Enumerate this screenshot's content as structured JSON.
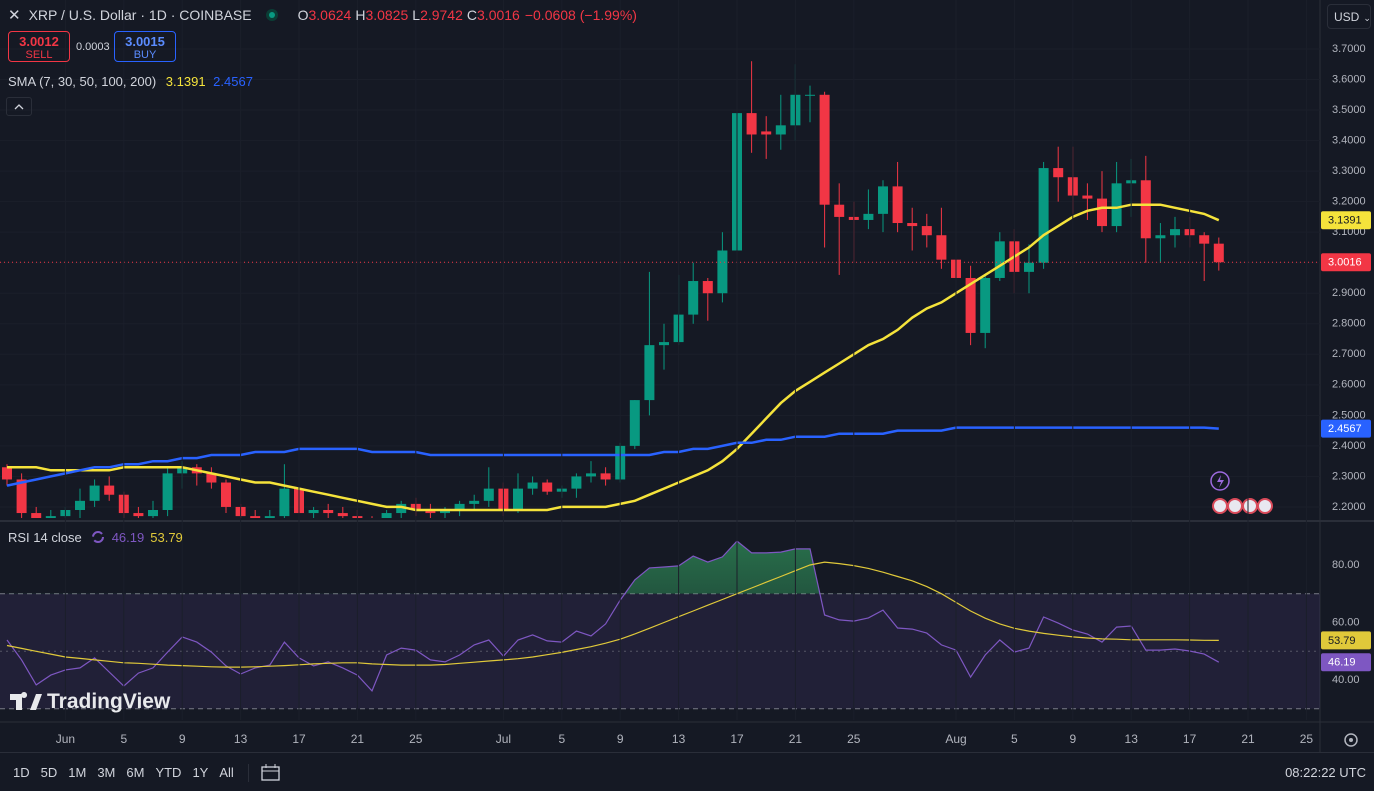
{
  "header": {
    "ohlc_labels": [
      "O",
      "H",
      "L",
      "C"
    ],
    "change": "−0.0608 (−1.99%)",
    "currency": "USD",
    "logo": "TradingView"
  },
  "trade": {
    "sell_price": 3.0012,
    "sell_label": "SELL",
    "spread": 0.0003,
    "buy_price": 3.0015,
    "buy_label": "BUY"
  },
  "toolbar": {
    "ranges": [
      "1D",
      "5D",
      "1M",
      "3M",
      "6M",
      "YTD",
      "1Y",
      "All"
    ],
    "time": "08:22:22 UTC"
  },
  "chart_data": [
    {
      "type": "candlestick",
      "title": "XRP / U.S. Dollar · 1D · COINBASE",
      "legend_title": "SMA (7, 30, 50, 100, 200)",
      "up_color": "#089981",
      "down_color": "#f23645",
      "grid": true,
      "x": [
        "05-28",
        "05-29",
        "05-30",
        "05-31",
        "06-01",
        "06-02",
        "06-03",
        "06-04",
        "06-05",
        "06-06",
        "06-07",
        "06-08",
        "06-09",
        "06-10",
        "06-11",
        "06-12",
        "06-13",
        "06-14",
        "06-15",
        "06-16",
        "06-17",
        "06-18",
        "06-19",
        "06-20",
        "06-21",
        "06-22",
        "06-23",
        "06-24",
        "06-25",
        "06-26",
        "06-27",
        "06-28",
        "06-29",
        "06-30",
        "07-01",
        "07-02",
        "07-03",
        "07-04",
        "07-05",
        "07-06",
        "07-07",
        "07-08",
        "07-09",
        "07-10",
        "07-11",
        "07-12",
        "07-13",
        "07-14",
        "07-15",
        "07-16",
        "07-17",
        "07-18",
        "07-19",
        "07-20",
        "07-21",
        "07-22",
        "07-23",
        "07-24",
        "07-25",
        "07-26",
        "07-27",
        "07-28",
        "07-29",
        "07-30",
        "07-31",
        "08-01",
        "08-02",
        "08-03",
        "08-04",
        "08-05",
        "08-06",
        "08-07",
        "08-08",
        "08-09",
        "08-10",
        "08-11",
        "08-12",
        "08-13",
        "08-14",
        "08-15",
        "08-16",
        "08-17",
        "08-18",
        "08-19"
      ],
      "open": [
        2.33,
        2.29,
        2.18,
        2.16,
        2.17,
        2.19,
        2.22,
        2.27,
        2.24,
        2.18,
        2.17,
        2.19,
        2.31,
        2.33,
        2.31,
        2.28,
        2.2,
        2.17,
        2.16,
        2.17,
        2.26,
        2.18,
        2.19,
        2.18,
        2.17,
        2.16,
        2.14,
        2.18,
        2.21,
        2.19,
        2.18,
        2.19,
        2.21,
        2.22,
        2.26,
        2.19,
        2.26,
        2.28,
        2.25,
        2.26,
        2.3,
        2.31,
        2.29,
        2.4,
        2.55,
        2.73,
        2.74,
        2.83,
        2.94,
        2.9,
        3.04,
        3.49,
        3.43,
        3.42,
        3.45,
        3.55,
        3.55,
        3.19,
        3.15,
        3.14,
        3.16,
        3.25,
        3.13,
        3.12,
        3.09,
        3.01,
        2.95,
        2.77,
        2.95,
        3.07,
        2.97,
        3.0,
        3.31,
        3.28,
        3.22,
        3.21,
        3.12,
        3.26,
        3.27,
        3.08,
        3.09,
        3.11,
        3.09,
        3.0624
      ],
      "high": [
        2.34,
        2.31,
        2.2,
        2.19,
        2.2,
        2.26,
        2.29,
        2.3,
        2.25,
        2.2,
        2.22,
        2.33,
        2.35,
        2.34,
        2.33,
        2.29,
        2.21,
        2.19,
        2.19,
        2.34,
        2.27,
        2.2,
        2.21,
        2.2,
        2.19,
        2.17,
        2.19,
        2.22,
        2.23,
        2.21,
        2.2,
        2.22,
        2.24,
        2.33,
        2.28,
        2.31,
        2.3,
        2.29,
        2.27,
        2.31,
        2.35,
        2.33,
        2.41,
        2.55,
        2.97,
        2.8,
        2.96,
        3.0,
        2.95,
        3.1,
        3.5,
        3.66,
        3.48,
        3.55,
        3.65,
        3.58,
        3.56,
        3.26,
        3.2,
        3.24,
        3.27,
        3.33,
        3.18,
        3.16,
        3.18,
        3.03,
        2.99,
        2.96,
        3.1,
        3.11,
        3.06,
        3.33,
        3.38,
        3.38,
        3.26,
        3.3,
        3.33,
        3.34,
        3.35,
        3.13,
        3.15,
        3.15,
        3.1,
        3.0825
      ],
      "low": [
        2.27,
        2.15,
        2.12,
        2.14,
        2.14,
        2.16,
        2.2,
        2.22,
        2.14,
        2.15,
        2.13,
        2.17,
        2.26,
        2.27,
        2.26,
        2.18,
        2.1,
        2.08,
        2.12,
        2.15,
        2.15,
        2.15,
        2.16,
        2.16,
        2.13,
        2.08,
        2.12,
        2.16,
        2.17,
        2.16,
        2.16,
        2.17,
        2.19,
        2.2,
        2.17,
        2.18,
        2.24,
        2.24,
        2.23,
        2.23,
        2.28,
        2.27,
        2.28,
        2.39,
        2.5,
        2.65,
        2.73,
        2.8,
        2.81,
        2.87,
        3.03,
        3.36,
        3.34,
        3.37,
        3.4,
        3.46,
        3.05,
        2.96,
        3.0,
        3.11,
        3.1,
        3.1,
        3.04,
        3.05,
        2.98,
        2.93,
        2.73,
        2.72,
        2.94,
        2.9,
        2.9,
        2.98,
        3.2,
        3.16,
        3.14,
        3.1,
        3.1,
        3.15,
        3.0,
        3.0,
        3.05,
        3.05,
        2.94,
        2.9742
      ],
      "close": [
        2.29,
        2.18,
        2.16,
        2.17,
        2.19,
        2.22,
        2.27,
        2.24,
        2.18,
        2.17,
        2.19,
        2.31,
        2.33,
        2.31,
        2.28,
        2.2,
        2.17,
        2.16,
        2.17,
        2.26,
        2.18,
        2.19,
        2.18,
        2.17,
        2.16,
        2.14,
        2.18,
        2.21,
        2.19,
        2.18,
        2.19,
        2.21,
        2.22,
        2.26,
        2.19,
        2.26,
        2.28,
        2.25,
        2.26,
        2.3,
        2.31,
        2.29,
        2.4,
        2.55,
        2.73,
        2.74,
        2.83,
        2.94,
        2.9,
        3.04,
        3.49,
        3.42,
        3.42,
        3.45,
        3.55,
        3.55,
        3.19,
        3.15,
        3.14,
        3.16,
        3.25,
        3.13,
        3.12,
        3.09,
        3.01,
        2.95,
        2.77,
        2.95,
        3.07,
        2.97,
        3.0,
        3.31,
        3.28,
        3.22,
        3.21,
        3.12,
        3.26,
        3.27,
        3.08,
        3.09,
        3.11,
        3.09,
        3.0624,
        3.0016
      ],
      "series": [
        {
          "color": "#f5e33b",
          "values": [
            2.33,
            2.33,
            2.33,
            2.32,
            2.32,
            2.32,
            2.32,
            2.32,
            2.33,
            2.33,
            2.33,
            2.33,
            2.33,
            2.32,
            2.31,
            2.3,
            2.29,
            2.28,
            2.28,
            2.27,
            2.26,
            2.25,
            2.24,
            2.23,
            2.22,
            2.21,
            2.2,
            2.2,
            2.19,
            2.19,
            2.19,
            2.19,
            2.19,
            2.19,
            2.19,
            2.19,
            2.19,
            2.19,
            2.2,
            2.2,
            2.2,
            2.2,
            2.21,
            2.22,
            2.24,
            2.26,
            2.28,
            2.3,
            2.32,
            2.35,
            2.39,
            2.44,
            2.49,
            2.54,
            2.58,
            2.61,
            2.64,
            2.67,
            2.7,
            2.73,
            2.75,
            2.78,
            2.82,
            2.85,
            2.87,
            2.9,
            2.93,
            2.96,
            2.99,
            3.02,
            3.05,
            3.09,
            3.12,
            3.15,
            3.17,
            3.18,
            3.18,
            3.19,
            3.19,
            3.19,
            3.18,
            3.17,
            3.16,
            3.1391
          ]
        },
        {
          "color": "#2962ff",
          "values": [
            2.27,
            2.28,
            2.29,
            2.3,
            2.31,
            2.32,
            2.33,
            2.33,
            2.34,
            2.34,
            2.35,
            2.35,
            2.36,
            2.36,
            2.37,
            2.37,
            2.37,
            2.38,
            2.38,
            2.38,
            2.39,
            2.39,
            2.39,
            2.39,
            2.39,
            2.38,
            2.38,
            2.38,
            2.38,
            2.37,
            2.37,
            2.37,
            2.37,
            2.37,
            2.37,
            2.37,
            2.37,
            2.37,
            2.37,
            2.37,
            2.37,
            2.37,
            2.37,
            2.37,
            2.37,
            2.38,
            2.38,
            2.39,
            2.39,
            2.4,
            2.41,
            2.41,
            2.42,
            2.42,
            2.43,
            2.43,
            2.43,
            2.44,
            2.44,
            2.44,
            2.44,
            2.45,
            2.45,
            2.45,
            2.45,
            2.46,
            2.46,
            2.46,
            2.46,
            2.46,
            2.46,
            2.46,
            2.46,
            2.46,
            2.46,
            2.46,
            2.46,
            2.46,
            2.46,
            2.46,
            2.46,
            2.46,
            2.46,
            2.4567
          ]
        }
      ],
      "ylim": [
        2.1638,
        3.8605
      ],
      "yticks": [
        {
          "value": 2.2,
          "label": "2.2000"
        },
        {
          "value": 2.3,
          "label": "2.3000"
        },
        {
          "value": 2.4,
          "label": "2.4000"
        },
        {
          "value": 2.5,
          "label": "2.5000"
        },
        {
          "value": 2.6,
          "label": "2.6000"
        },
        {
          "value": 2.7,
          "label": "2.7000"
        },
        {
          "value": 2.8,
          "label": "2.8000"
        },
        {
          "value": 2.9,
          "label": "2.9000"
        },
        {
          "value": 3.0,
          "label": "3.0000"
        },
        {
          "value": 3.1,
          "label": "3.1000"
        },
        {
          "value": 3.2,
          "label": "3.2000"
        },
        {
          "value": 3.3,
          "label": "3.3000"
        },
        {
          "value": 3.4,
          "label": "3.4000"
        },
        {
          "value": 3.5,
          "label": "3.5000"
        },
        {
          "value": 3.6,
          "label": "3.6000"
        },
        {
          "value": 3.7,
          "label": "3.7000"
        }
      ],
      "xticks": [
        {
          "value": "06-01",
          "label": "Jun"
        },
        {
          "value": "06-05",
          "label": "5"
        },
        {
          "value": "06-09",
          "label": "9"
        },
        {
          "value": "06-13",
          "label": "13"
        },
        {
          "value": "06-17",
          "label": "17"
        },
        {
          "value": "06-21",
          "label": "21"
        },
        {
          "value": "06-25",
          "label": "25"
        },
        {
          "value": "07-01",
          "label": "Jul"
        },
        {
          "value": "07-05",
          "label": "5"
        },
        {
          "value": "07-09",
          "label": "9"
        },
        {
          "value": "07-13",
          "label": "13"
        },
        {
          "value": "07-17",
          "label": "17"
        },
        {
          "value": "07-21",
          "label": "21"
        },
        {
          "value": "07-25",
          "label": "25"
        },
        {
          "value": "08-01",
          "label": "Aug"
        },
        {
          "value": "08-05",
          "label": "5"
        },
        {
          "value": "08-09",
          "label": "9"
        },
        {
          "value": "08-13",
          "label": "13"
        },
        {
          "value": "08-17",
          "label": "17"
        },
        {
          "value": "08-21",
          "label": "21"
        },
        {
          "value": "08-25",
          "label": "25"
        }
      ]
    },
    {
      "type": "line",
      "title": "RSI 14 close",
      "band_color": "#7e57c2",
      "overbought_color": "#2e8b57",
      "bands": [
        30,
        70
      ],
      "midline": 50,
      "series": [
        {
          "color": "#7e57c2",
          "values": [
            53.9,
            47.0,
            38.3,
            41.7,
            43.5,
            44.2,
            47.7,
            42.8,
            37.9,
            42.4,
            44.2,
            49.7,
            55.0,
            53.2,
            49.7,
            44.9,
            42.1,
            44.2,
            45.2,
            53.2,
            47.7,
            44.9,
            46.3,
            44.2,
            41.7,
            36.2,
            48.7,
            51.1,
            50.4,
            47.0,
            46.3,
            48.7,
            52.2,
            53.9,
            48.3,
            53.9,
            55.7,
            53.6,
            53.2,
            57.0,
            55.3,
            59.5,
            67.8,
            74.8,
            79.0,
            79.3,
            79.7,
            83.1,
            81.0,
            82.8,
            88.3,
            84.2,
            84.2,
            84.5,
            85.6,
            85.6,
            62.6,
            60.9,
            60.5,
            61.6,
            64.3,
            58.1,
            57.7,
            56.3,
            52.2,
            50.4,
            41.0,
            48.7,
            53.9,
            49.7,
            51.1,
            61.9,
            59.8,
            57.4,
            56.0,
            53.2,
            58.4,
            58.8,
            50.4,
            50.4,
            50.8,
            50.1,
            49.0,
            46.19
          ]
        },
        {
          "color": "#e0c93a",
          "values": [
            52.0,
            51.0,
            50.0,
            49.0,
            48.0,
            47.5,
            47.0,
            46.5,
            46.0,
            45.8,
            45.5,
            45.2,
            45.0,
            44.8,
            44.6,
            44.5,
            44.5,
            44.6,
            44.8,
            45.0,
            45.3,
            45.6,
            45.8,
            46.0,
            46.0,
            45.6,
            45.4,
            45.2,
            45.2,
            45.2,
            45.4,
            45.8,
            46.2,
            46.6,
            47.0,
            47.4,
            48.0,
            48.8,
            49.6,
            50.6,
            51.6,
            52.8,
            54.2,
            56.0,
            58.0,
            60.0,
            62.0,
            64.0,
            66.0,
            68.0,
            70.0,
            72.0,
            74.0,
            76.0,
            78.0,
            80.0,
            81.0,
            80.5,
            79.8,
            78.8,
            77.5,
            76.0,
            74.5,
            72.5,
            70.0,
            67.0,
            64.0,
            61.5,
            59.5,
            58.0,
            57.0,
            56.2,
            55.6,
            55.0,
            54.6,
            54.3,
            54.2,
            54.0,
            54.0,
            54.0,
            54.0,
            53.9,
            53.8,
            53.79
          ]
        }
      ],
      "ylim": [
        26.09,
        93.91
      ],
      "yticks": [
        {
          "value": 40,
          "label": "40.00"
        },
        {
          "value": 60,
          "label": "60.00"
        },
        {
          "value": 80,
          "label": "80.00"
        }
      ]
    }
  ]
}
